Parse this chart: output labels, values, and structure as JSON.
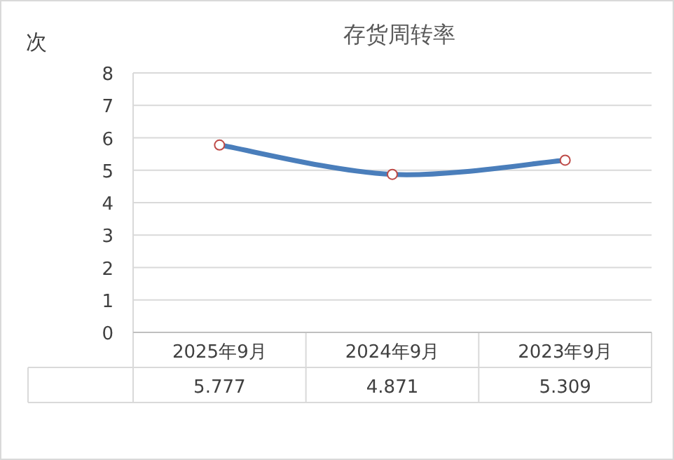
{
  "chart_data": {
    "type": "line",
    "title": "存货周转率",
    "ylabel": "次",
    "categories": [
      "2025年9月",
      "2024年9月",
      "2023年9月"
    ],
    "series": [
      {
        "color": "#4a7ebb",
        "values": [
          5.777,
          4.871,
          5.309
        ]
      }
    ],
    "ylim": [
      0,
      8
    ],
    "yticks": [
      0,
      1,
      2,
      3,
      4,
      5,
      6,
      7,
      8
    ],
    "grid": "y",
    "marker": "circle",
    "line_style": "solid",
    "data_labels": true
  }
}
